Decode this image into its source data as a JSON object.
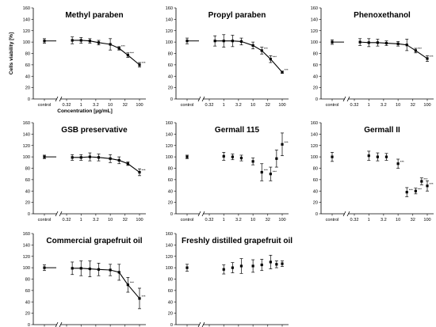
{
  "chart_data": {
    "type": "scatter",
    "ylabel": "Cells viability [%]",
    "xlabel": "Concentration [µg/mL]",
    "x_categories": [
      "control",
      "0.32",
      "1",
      "3.2",
      "10",
      "32",
      "100"
    ],
    "y_ticks": [
      0,
      20,
      40,
      60,
      80,
      100,
      120,
      140,
      160
    ],
    "ylim": [
      0,
      160
    ],
    "panels": [
      {
        "title": "Methyl paraben",
        "fit": true,
        "control": {
          "mean": 102,
          "err": 4
        },
        "points": [
          {
            "x": 0.5,
            "y": 103,
            "err": 6
          },
          {
            "x": 1,
            "y": 103,
            "err": 5
          },
          {
            "x": 2,
            "y": 102,
            "err": 4
          },
          {
            "x": 4,
            "y": 99,
            "err": 4
          },
          {
            "x": 10,
            "y": 96,
            "err": 10
          },
          {
            "x": 20,
            "y": 89,
            "err": 3,
            "sig": "***"
          },
          {
            "x": 40,
            "y": 77,
            "err": 4,
            "sig": "***"
          },
          {
            "x": 100,
            "y": 60,
            "err": 4,
            "sig": "***"
          }
        ]
      },
      {
        "title": "Propyl paraben",
        "fit": true,
        "control": {
          "mean": 102,
          "err": 5
        },
        "points": [
          {
            "x": 0.5,
            "y": 102,
            "err": 9
          },
          {
            "x": 1,
            "y": 102,
            "err": 11
          },
          {
            "x": 2,
            "y": 102,
            "err": 10
          },
          {
            "x": 4,
            "y": 101,
            "err": 6
          },
          {
            "x": 10,
            "y": 94,
            "err": 6
          },
          {
            "x": 20,
            "y": 85,
            "err": 6,
            "sig": "***"
          },
          {
            "x": 40,
            "y": 70,
            "err": 6,
            "sig": "***"
          },
          {
            "x": 100,
            "y": 47,
            "err": 2,
            "sig": "***"
          }
        ]
      },
      {
        "title": "Phenoxethanol",
        "fit": true,
        "control": {
          "mean": 100,
          "err": 4
        },
        "points": [
          {
            "x": 0.5,
            "y": 100,
            "err": 6
          },
          {
            "x": 1,
            "y": 99,
            "err": 7
          },
          {
            "x": 2,
            "y": 99,
            "err": 6
          },
          {
            "x": 4,
            "y": 98,
            "err": 4
          },
          {
            "x": 10,
            "y": 97,
            "err": 4
          },
          {
            "x": 20,
            "y": 95,
            "err": 10
          },
          {
            "x": 40,
            "y": 85,
            "err": 4,
            "sig": "***"
          },
          {
            "x": 100,
            "y": 71,
            "err": 5,
            "sig": "***"
          }
        ]
      },
      {
        "title": "GSB preservative",
        "fit": true,
        "control": {
          "mean": 100,
          "err": 3
        },
        "points": [
          {
            "x": 0.5,
            "y": 99,
            "err": 5
          },
          {
            "x": 1,
            "y": 99,
            "err": 5
          },
          {
            "x": 2,
            "y": 100,
            "err": 7
          },
          {
            "x": 4,
            "y": 99,
            "err": 6
          },
          {
            "x": 10,
            "y": 97,
            "err": 7
          },
          {
            "x": 20,
            "y": 94,
            "err": 6
          },
          {
            "x": 40,
            "y": 88,
            "err": 3
          },
          {
            "x": 100,
            "y": 73,
            "err": 6,
            "sig": "***"
          }
        ]
      },
      {
        "title": "Germall 115",
        "fit": false,
        "control": {
          "mean": 100,
          "err": 3
        },
        "points": [
          {
            "x": 1,
            "y": 101,
            "err": 7
          },
          {
            "x": 2,
            "y": 100,
            "err": 5
          },
          {
            "x": 4,
            "y": 98,
            "err": 5
          },
          {
            "x": 10,
            "y": 92,
            "err": 6
          },
          {
            "x": 20,
            "y": 73,
            "err": 15,
            "sig": "***"
          },
          {
            "x": 40,
            "y": 70,
            "err": 12,
            "sig": "***"
          },
          {
            "x": 64,
            "y": 97,
            "err": 15
          },
          {
            "x": 100,
            "y": 122,
            "err": 20,
            "sig": "***"
          }
        ]
      },
      {
        "title": "Germall II",
        "fit": false,
        "control": {
          "mean": 100,
          "err": 8
        },
        "points": [
          {
            "x": 1,
            "y": 102,
            "err": 8
          },
          {
            "x": 2,
            "y": 100,
            "err": 7
          },
          {
            "x": 4,
            "y": 100,
            "err": 6
          },
          {
            "x": 10,
            "y": 88,
            "err": 8,
            "sig": "***"
          },
          {
            "x": 20,
            "y": 38,
            "err": 8,
            "sig": "***"
          },
          {
            "x": 40,
            "y": 40,
            "err": 5,
            "sig": "***"
          },
          {
            "x": 64,
            "y": 57,
            "err": 6,
            "sig": "***"
          },
          {
            "x": 100,
            "y": 49,
            "err": 9,
            "sig": "***"
          }
        ]
      },
      {
        "title": "Commercial grapefruit oil",
        "fit": true,
        "control": {
          "mean": 100,
          "err": 5
        },
        "points": [
          {
            "x": 0.5,
            "y": 99,
            "err": 11
          },
          {
            "x": 1,
            "y": 99,
            "err": 13
          },
          {
            "x": 2,
            "y": 98,
            "err": 14
          },
          {
            "x": 4,
            "y": 97,
            "err": 11
          },
          {
            "x": 10,
            "y": 96,
            "err": 10
          },
          {
            "x": 20,
            "y": 92,
            "err": 14
          },
          {
            "x": 40,
            "y": 70,
            "err": 13,
            "sig": "***"
          },
          {
            "x": 100,
            "y": 46,
            "err": 18,
            "sig": "***"
          }
        ]
      },
      {
        "title": "Freshly distilled grapefruit oil",
        "fit": false,
        "control": {
          "mean": 100,
          "err": 6
        },
        "points": [
          {
            "x": 1,
            "y": 97,
            "err": 8
          },
          {
            "x": 2,
            "y": 100,
            "err": 9
          },
          {
            "x": 4,
            "y": 103,
            "err": 13
          },
          {
            "x": 10,
            "y": 103,
            "err": 11
          },
          {
            "x": 20,
            "y": 105,
            "err": 10
          },
          {
            "x": 40,
            "y": 110,
            "err": 12
          },
          {
            "x": 64,
            "y": 106,
            "err": 6
          },
          {
            "x": 100,
            "y": 107,
            "err": 5
          }
        ]
      }
    ]
  }
}
